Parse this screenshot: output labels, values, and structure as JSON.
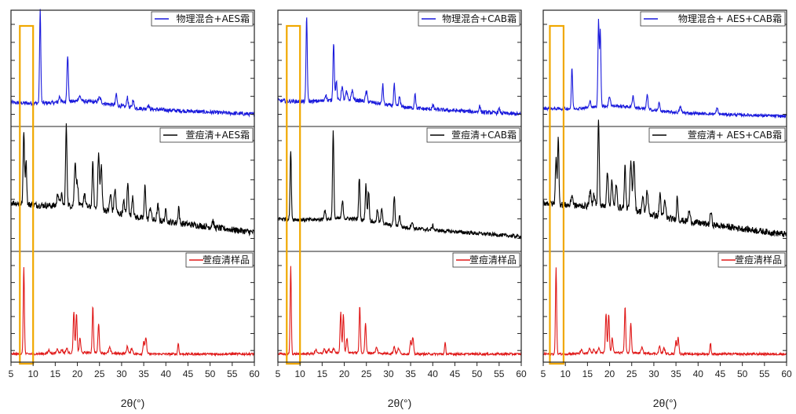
{
  "chart_data": [
    {
      "type": "line",
      "xlabel": "2θ(°)",
      "xlim": [
        5,
        60
      ],
      "xticks": [
        5,
        10,
        15,
        20,
        25,
        30,
        35,
        40,
        45,
        50,
        55,
        60
      ],
      "highlight": {
        "x_range": [
          7,
          10
        ],
        "color": "#f0a800"
      },
      "panels": [
        {
          "name": "物理混合+AES霜",
          "color": "#1a1adc",
          "baseline": [
            0.18,
            0.06
          ],
          "noise": 0.02,
          "peaks": [
            [
              11.6,
              0.95,
              0.14
            ],
            [
              17.8,
              0.48,
              0.16
            ],
            [
              16.0,
              0.06,
              0.2
            ],
            [
              20.5,
              0.05,
              0.3
            ],
            [
              25.0,
              0.05,
              0.3
            ],
            [
              28.8,
              0.12,
              0.15
            ],
            [
              31.3,
              0.11,
              0.15
            ],
            [
              32.6,
              0.09,
              0.15
            ],
            [
              36.0,
              0.04,
              0.2
            ]
          ]
        },
        {
          "name": "萱痘清+AES霜",
          "color": "#000000",
          "baseline": [
            0.4,
            0.12
          ],
          "noise": 0.03,
          "peaks": [
            [
              7.9,
              0.7,
              0.15
            ],
            [
              8.4,
              0.42,
              0.15
            ],
            [
              15.6,
              0.12,
              0.2
            ],
            [
              16.4,
              0.1,
              0.2
            ],
            [
              17.5,
              0.75,
              0.16
            ],
            [
              19.5,
              0.42,
              0.18
            ],
            [
              20.0,
              0.22,
              0.18
            ],
            [
              21.6,
              0.12,
              0.2
            ],
            [
              23.5,
              0.42,
              0.16
            ],
            [
              24.8,
              0.52,
              0.18
            ],
            [
              25.4,
              0.42,
              0.18
            ],
            [
              27.5,
              0.16,
              0.2
            ],
            [
              28.5,
              0.22,
              0.2
            ],
            [
              30.5,
              0.12,
              0.2
            ],
            [
              31.4,
              0.3,
              0.18
            ],
            [
              32.5,
              0.2,
              0.18
            ],
            [
              35.3,
              0.32,
              0.16
            ],
            [
              36.5,
              0.12,
              0.2
            ],
            [
              38.2,
              0.14,
              0.2
            ],
            [
              40.0,
              0.1,
              0.2
            ],
            [
              42.9,
              0.16,
              0.15
            ],
            [
              50.6,
              0.06,
              0.2
            ]
          ]
        },
        {
          "name": "萱痘清样品",
          "color": "#e01818",
          "baseline": [
            0.02,
            0.02
          ],
          "noise": 0.012,
          "peaks": [
            [
              7.9,
              0.95,
              0.13
            ],
            [
              13.6,
              0.04,
              0.2
            ],
            [
              15.5,
              0.05,
              0.2
            ],
            [
              16.5,
              0.04,
              0.2
            ],
            [
              17.6,
              0.05,
              0.2
            ],
            [
              19.2,
              0.44,
              0.15
            ],
            [
              19.8,
              0.42,
              0.15
            ],
            [
              20.6,
              0.16,
              0.16
            ],
            [
              23.5,
              0.5,
              0.14
            ],
            [
              24.8,
              0.32,
              0.15
            ],
            [
              27.3,
              0.06,
              0.2
            ],
            [
              31.3,
              0.08,
              0.18
            ],
            [
              32.3,
              0.06,
              0.2
            ],
            [
              35.0,
              0.14,
              0.16
            ],
            [
              35.5,
              0.18,
              0.16
            ],
            [
              42.8,
              0.12,
              0.13
            ]
          ]
        }
      ]
    },
    {
      "type": "line",
      "xlabel": "2θ(°)",
      "xlim": [
        5,
        60
      ],
      "xticks": [
        5,
        10,
        15,
        20,
        25,
        30,
        35,
        40,
        45,
        50,
        55,
        60
      ],
      "highlight": {
        "x_range": [
          7,
          10
        ],
        "color": "#f0a800"
      },
      "panels": [
        {
          "name": "物理混合+CAB霜",
          "color": "#1a1adc",
          "baseline": [
            0.2,
            0.06
          ],
          "noise": 0.02,
          "peaks": [
            [
              11.5,
              0.88,
              0.14
            ],
            [
              15.8,
              0.06,
              0.2
            ],
            [
              17.6,
              0.6,
              0.15
            ],
            [
              18.2,
              0.2,
              0.15
            ],
            [
              19.5,
              0.14,
              0.18
            ],
            [
              20.5,
              0.08,
              0.2
            ],
            [
              21.8,
              0.1,
              0.2
            ],
            [
              25.0,
              0.1,
              0.2
            ],
            [
              28.7,
              0.2,
              0.15
            ],
            [
              31.3,
              0.22,
              0.15
            ],
            [
              32.5,
              0.1,
              0.18
            ],
            [
              36.0,
              0.16,
              0.15
            ],
            [
              40.0,
              0.04,
              0.2
            ],
            [
              50.6,
              0.06,
              0.18
            ],
            [
              55.0,
              0.04,
              0.2
            ]
          ]
        },
        {
          "name": "萱痘清+CAB霜",
          "color": "#000000",
          "baseline": [
            0.25,
            0.08
          ],
          "noise": 0.018,
          "peaks": [
            [
              7.9,
              0.65,
              0.14
            ],
            [
              15.6,
              0.08,
              0.2
            ],
            [
              17.5,
              0.82,
              0.15
            ],
            [
              19.6,
              0.16,
              0.18
            ],
            [
              23.4,
              0.4,
              0.15
            ],
            [
              24.9,
              0.34,
              0.16
            ],
            [
              25.5,
              0.28,
              0.16
            ],
            [
              27.5,
              0.12,
              0.18
            ],
            [
              28.5,
              0.14,
              0.18
            ],
            [
              31.3,
              0.28,
              0.16
            ],
            [
              32.5,
              0.1,
              0.2
            ],
            [
              35.3,
              0.06,
              0.2
            ],
            [
              40.0,
              0.04,
              0.2
            ]
          ]
        },
        {
          "name": "萱痘清样品",
          "color": "#e01818",
          "baseline": [
            0.02,
            0.02
          ],
          "noise": 0.012,
          "peaks": [
            [
              7.9,
              0.95,
              0.13
            ],
            [
              13.6,
              0.04,
              0.2
            ],
            [
              15.5,
              0.05,
              0.2
            ],
            [
              16.5,
              0.04,
              0.2
            ],
            [
              17.6,
              0.05,
              0.2
            ],
            [
              19.2,
              0.44,
              0.15
            ],
            [
              19.8,
              0.42,
              0.15
            ],
            [
              20.6,
              0.16,
              0.16
            ],
            [
              23.5,
              0.5,
              0.14
            ],
            [
              24.8,
              0.32,
              0.15
            ],
            [
              27.3,
              0.06,
              0.2
            ],
            [
              31.3,
              0.08,
              0.18
            ],
            [
              32.3,
              0.06,
              0.2
            ],
            [
              35.0,
              0.14,
              0.16
            ],
            [
              35.5,
              0.18,
              0.16
            ],
            [
              42.8,
              0.12,
              0.13
            ]
          ]
        }
      ]
    },
    {
      "type": "line",
      "xlabel": "2θ(°)",
      "xlim": [
        5,
        60
      ],
      "xticks": [
        5,
        10,
        15,
        20,
        25,
        30,
        35,
        40,
        45,
        50,
        55,
        60
      ],
      "highlight": {
        "x_range": [
          6.5,
          9.6
        ],
        "color": "#f0a800"
      },
      "panels": [
        {
          "name": "物理混合+ AES+CAB霜",
          "color": "#1a1adc",
          "baseline": [
            0.12,
            0.04
          ],
          "noise": 0.015,
          "peaks": [
            [
              11.5,
              0.42,
              0.14
            ],
            [
              15.6,
              0.06,
              0.2
            ],
            [
              17.5,
              0.88,
              0.14
            ],
            [
              17.9,
              0.78,
              0.14
            ],
            [
              20.0,
              0.1,
              0.2
            ],
            [
              25.3,
              0.12,
              0.18
            ],
            [
              28.5,
              0.16,
              0.16
            ],
            [
              31.2,
              0.08,
              0.18
            ],
            [
              36.0,
              0.06,
              0.2
            ],
            [
              44.3,
              0.06,
              0.18
            ]
          ]
        },
        {
          "name": "萱痘清+ AES+CAB霜",
          "color": "#000000",
          "baseline": [
            0.4,
            0.1
          ],
          "noise": 0.03,
          "peaks": [
            [
              7.9,
              0.45,
              0.15
            ],
            [
              8.4,
              0.62,
              0.15
            ],
            [
              11.5,
              0.1,
              0.2
            ],
            [
              15.6,
              0.14,
              0.2
            ],
            [
              16.5,
              0.12,
              0.2
            ],
            [
              17.5,
              0.82,
              0.16
            ],
            [
              19.5,
              0.34,
              0.18
            ],
            [
              20.5,
              0.24,
              0.18
            ],
            [
              21.5,
              0.2,
              0.2
            ],
            [
              23.5,
              0.4,
              0.16
            ],
            [
              24.8,
              0.44,
              0.2
            ],
            [
              25.5,
              0.48,
              0.2
            ],
            [
              27.5,
              0.14,
              0.2
            ],
            [
              28.5,
              0.22,
              0.2
            ],
            [
              31.4,
              0.22,
              0.18
            ],
            [
              32.5,
              0.16,
              0.2
            ],
            [
              35.3,
              0.22,
              0.16
            ],
            [
              38.0,
              0.1,
              0.2
            ],
            [
              42.9,
              0.12,
              0.18
            ]
          ]
        },
        {
          "name": "萱痘清样品",
          "color": "#e01818",
          "baseline": [
            0.02,
            0.02
          ],
          "noise": 0.012,
          "peaks": [
            [
              7.9,
              0.95,
              0.13
            ],
            [
              13.6,
              0.04,
              0.2
            ],
            [
              15.5,
              0.05,
              0.2
            ],
            [
              16.5,
              0.04,
              0.2
            ],
            [
              17.6,
              0.05,
              0.2
            ],
            [
              19.2,
              0.44,
              0.15
            ],
            [
              19.8,
              0.42,
              0.15
            ],
            [
              20.6,
              0.16,
              0.16
            ],
            [
              23.5,
              0.5,
              0.14
            ],
            [
              24.8,
              0.32,
              0.15
            ],
            [
              27.3,
              0.06,
              0.2
            ],
            [
              31.3,
              0.08,
              0.18
            ],
            [
              32.3,
              0.06,
              0.2
            ],
            [
              35.0,
              0.14,
              0.16
            ],
            [
              35.5,
              0.18,
              0.16
            ],
            [
              42.8,
              0.12,
              0.13
            ]
          ]
        }
      ]
    }
  ]
}
